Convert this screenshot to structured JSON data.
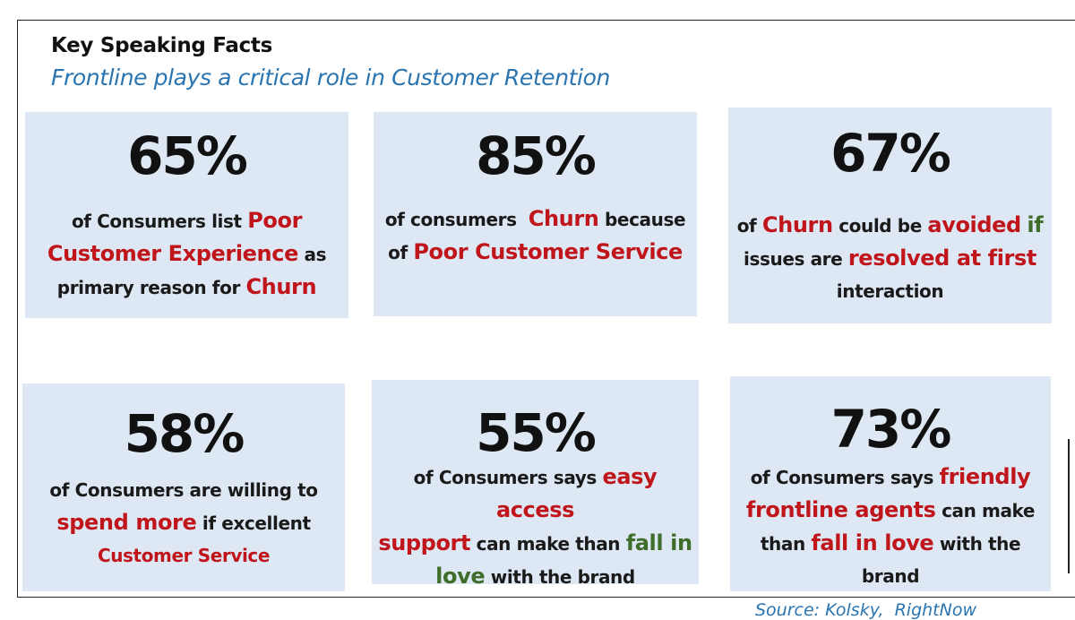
{
  "header": {
    "title": "Key Speaking Facts",
    "subtitle": "Frontline plays a critical role in Customer Retention"
  },
  "cards": [
    {
      "percent": "65%",
      "lines": [
        [
          "of Consumers list ",
          "Poor"
        ],
        [
          "Customer Experience",
          " as"
        ],
        [
          "primary reason for ",
          "Churn"
        ]
      ]
    },
    {
      "percent": "85%",
      "lines": [
        [
          "of consumers  ",
          "Churn",
          " because"
        ],
        [
          "of ",
          "Poor Customer Service"
        ]
      ]
    },
    {
      "percent": "67%",
      "lines": [
        [
          "of ",
          "Churn",
          " could be ",
          "avoided",
          " ",
          "if"
        ],
        [
          "issues are ",
          "resolved at first"
        ],
        [
          "interaction"
        ]
      ]
    },
    {
      "percent": "58%",
      "lines": [
        [
          "of Consumers are willing to"
        ],
        [
          "spend more",
          " if excellent"
        ],
        [
          "Customer Service"
        ]
      ]
    },
    {
      "percent": "55%",
      "lines": [
        [
          "of Consumers says ",
          "easy access"
        ],
        [
          "support",
          " can make than ",
          "fall in"
        ],
        [
          "love",
          " with the brand"
        ]
      ]
    },
    {
      "percent": "73%",
      "lines": [
        [
          "of Consumers says ",
          "friendly"
        ],
        [
          "frontline agents",
          " can make"
        ],
        [
          "than ",
          "fall in love",
          " with the"
        ],
        [
          "brand"
        ]
      ]
    }
  ],
  "source": "Source: Kolsky,  RightNow",
  "colors": {
    "card_bg": "#dde8f4",
    "accent_red": "#c0161b",
    "accent_green": "#3f6e2a",
    "subtitle_blue": "#2a74b0"
  }
}
